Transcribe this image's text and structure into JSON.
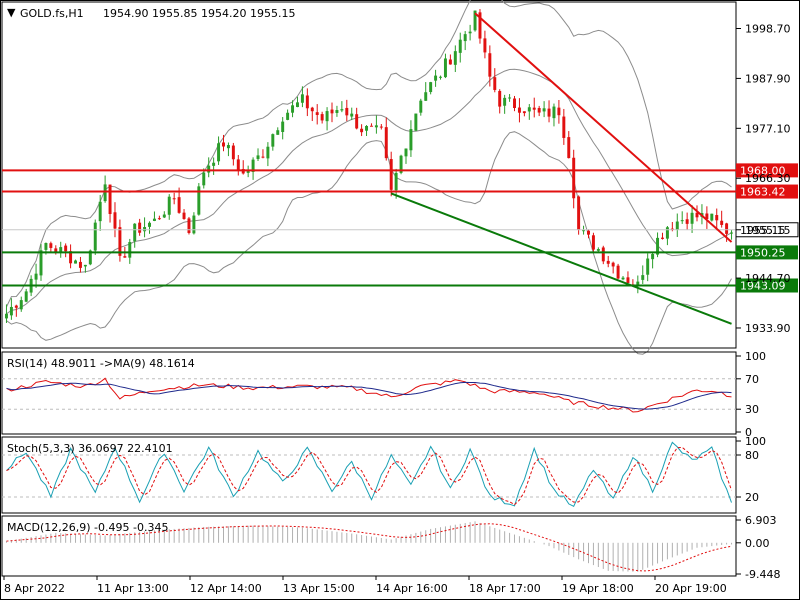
{
  "header": {
    "symbol": "GOLD.fs,H1",
    "ohlc": "1954.90 1955.85 1954.20 1955.15",
    "menu_glyph": "▼"
  },
  "colors": {
    "bull": "#2a9d2a",
    "bear": "#e11010",
    "band": "#8c8c8c",
    "resistance": "#e11010",
    "support": "#0a7a0a",
    "current_price_label_bg": "#ffffff",
    "rsi_line": "#e11010",
    "rsi_ma": "#1f2a8c",
    "stoch_main": "#1aa0b4",
    "stoch_signal": "#e11010",
    "macd_hist": "#b0b0b0",
    "macd_signal": "#e11010"
  },
  "chart_data": [
    {
      "type": "candlestick",
      "name": "GOLD.fs H1",
      "y_ticks": [
        "1998.70",
        "1987.90",
        "1977.10",
        "1966.30",
        "1955.15",
        "1944.70",
        "1933.90"
      ],
      "ylim": [
        1930.0,
        2004.0
      ],
      "x_ticks": [
        "8 Apr 2022",
        "11 Apr 13:00",
        "12 Apr 14:00",
        "13 Apr 15:00",
        "14 Apr 16:00",
        "18 Apr 17:00",
        "19 Apr 18:00",
        "20 Apr 19:00"
      ],
      "current_price": 1955.15,
      "current_price_label": "1955.15",
      "horizontal_levels": [
        {
          "value": 1968.0,
          "label": "1968.00",
          "kind": "resistance"
        },
        {
          "value": 1963.42,
          "label": "1963.42",
          "kind": "resistance"
        },
        {
          "value": 1950.25,
          "label": "1950.25",
          "kind": "support"
        },
        {
          "value": 1943.09,
          "label": "1943.09",
          "kind": "support"
        }
      ],
      "trendlines": [
        {
          "kind": "resistance",
          "from": {
            "bar": 95,
            "price": 2002.0
          },
          "to": {
            "bar": 147,
            "price": 1952.5
          }
        },
        {
          "kind": "support",
          "from": {
            "bar": 78,
            "price": 1963.0
          },
          "to": {
            "bar": 147,
            "price": 1934.8
          }
        }
      ],
      "close_anchors": [
        [
          0,
          1937
        ],
        [
          4,
          1942
        ],
        [
          8,
          1952
        ],
        [
          12,
          1950
        ],
        [
          16,
          1947
        ],
        [
          20,
          1966
        ],
        [
          23,
          1948
        ],
        [
          26,
          1955
        ],
        [
          30,
          1957
        ],
        [
          34,
          1962
        ],
        [
          37,
          1955
        ],
        [
          40,
          1968
        ],
        [
          44,
          1974
        ],
        [
          48,
          1967
        ],
        [
          52,
          1972
        ],
        [
          56,
          1980
        ],
        [
          60,
          1983
        ],
        [
          64,
          1979
        ],
        [
          68,
          1982
        ],
        [
          72,
          1977
        ],
        [
          76,
          1976
        ],
        [
          78,
          1963
        ],
        [
          80,
          1971
        ],
        [
          84,
          1984
        ],
        [
          88,
          1989
        ],
        [
          92,
          1996
        ],
        [
          95,
          2001
        ],
        [
          98,
          1988
        ],
        [
          100,
          1983
        ],
        [
          104,
          1982
        ],
        [
          108,
          1980
        ],
        [
          112,
          1981
        ],
        [
          114,
          1972
        ],
        [
          116,
          1955
        ],
        [
          120,
          1951
        ],
        [
          124,
          1946
        ],
        [
          128,
          1943
        ],
        [
          130,
          1950
        ],
        [
          134,
          1956
        ],
        [
          138,
          1958
        ],
        [
          142,
          1958
        ],
        [
          146,
          1955
        ]
      ],
      "bar_count": 148
    },
    {
      "type": "line",
      "name": "RSI",
      "label": "RSI(14) 48.9011  ->MA(9) 48.1614",
      "y_ticks": [
        "100",
        "70",
        "30",
        "0"
      ],
      "ylim": [
        0,
        100
      ],
      "anchors": [
        [
          0,
          55
        ],
        [
          8,
          66
        ],
        [
          16,
          60
        ],
        [
          20,
          70
        ],
        [
          23,
          44
        ],
        [
          30,
          56
        ],
        [
          40,
          62
        ],
        [
          50,
          58
        ],
        [
          60,
          60
        ],
        [
          70,
          58
        ],
        [
          78,
          46
        ],
        [
          84,
          60
        ],
        [
          92,
          68
        ],
        [
          98,
          54
        ],
        [
          108,
          52
        ],
        [
          114,
          40
        ],
        [
          120,
          34
        ],
        [
          128,
          28
        ],
        [
          134,
          42
        ],
        [
          140,
          55
        ],
        [
          144,
          54
        ],
        [
          146,
          49
        ]
      ]
    },
    {
      "type": "line",
      "name": "Stochastic",
      "label": "Stoch(5,3,3) 36.0697 22.4101",
      "y_ticks": [
        "100",
        "80",
        "20"
      ],
      "ylim": [
        0,
        100
      ],
      "anchors": [
        [
          0,
          60
        ],
        [
          4,
          85
        ],
        [
          9,
          20
        ],
        [
          13,
          88
        ],
        [
          18,
          25
        ],
        [
          22,
          92
        ],
        [
          27,
          15
        ],
        [
          32,
          85
        ],
        [
          36,
          30
        ],
        [
          41,
          90
        ],
        [
          46,
          20
        ],
        [
          51,
          85
        ],
        [
          56,
          40
        ],
        [
          61,
          88
        ],
        [
          66,
          30
        ],
        [
          70,
          70
        ],
        [
          74,
          20
        ],
        [
          78,
          78
        ],
        [
          82,
          35
        ],
        [
          86,
          92
        ],
        [
          90,
          30
        ],
        [
          94,
          88
        ],
        [
          98,
          20
        ],
        [
          103,
          10
        ],
        [
          107,
          88
        ],
        [
          111,
          30
        ],
        [
          115,
          5
        ],
        [
          119,
          60
        ],
        [
          123,
          15
        ],
        [
          127,
          80
        ],
        [
          131,
          30
        ],
        [
          135,
          96
        ],
        [
          139,
          72
        ],
        [
          143,
          88
        ],
        [
          147,
          10
        ],
        [
          148,
          36
        ]
      ]
    },
    {
      "type": "bar",
      "name": "MACD",
      "label": "MACD(12,26,9) -0.495 -0.345",
      "y_ticks": [
        "6.903",
        "0.00",
        "-9.448"
      ],
      "ylim": [
        -9.448,
        6.903
      ],
      "anchors": [
        [
          0,
          0.5
        ],
        [
          10,
          3.0
        ],
        [
          20,
          2.2
        ],
        [
          30,
          3.8
        ],
        [
          40,
          4.8
        ],
        [
          50,
          5.2
        ],
        [
          60,
          4.6
        ],
        [
          70,
          2.8
        ],
        [
          78,
          1.0
        ],
        [
          86,
          4.2
        ],
        [
          95,
          6.5
        ],
        [
          102,
          3.0
        ],
        [
          110,
          -1.0
        ],
        [
          116,
          -5.0
        ],
        [
          122,
          -8.5
        ],
        [
          128,
          -8.8
        ],
        [
          134,
          -5.0
        ],
        [
          140,
          -1.5
        ],
        [
          146,
          -0.5
        ]
      ]
    }
  ]
}
